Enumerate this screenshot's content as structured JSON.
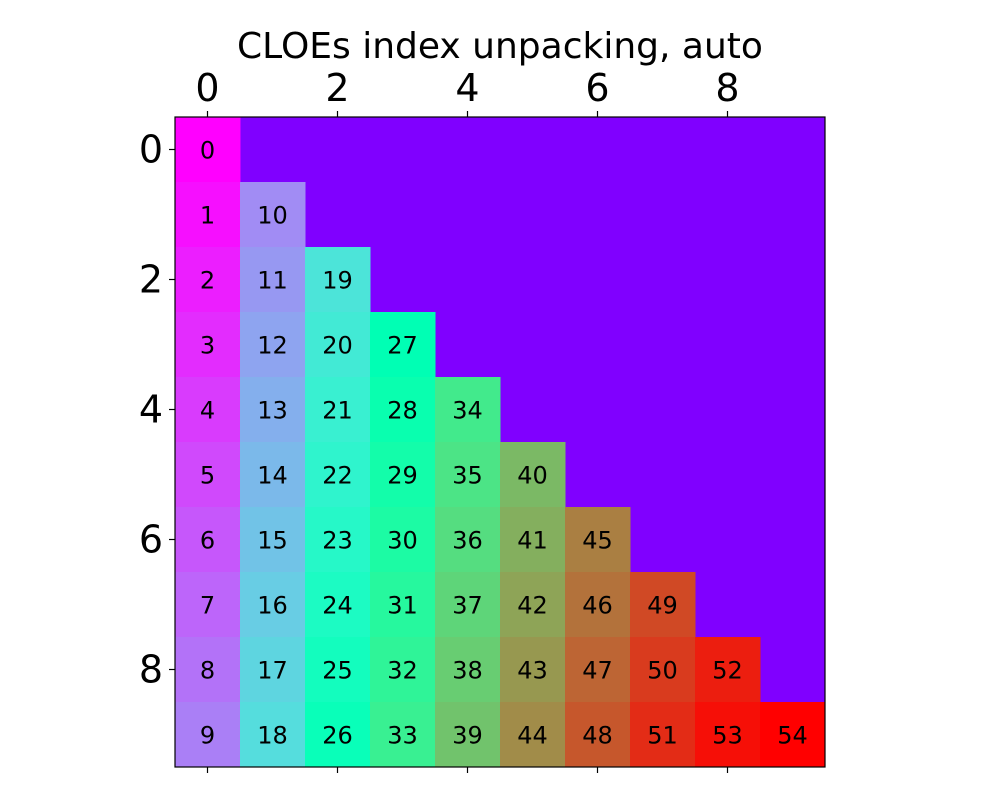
{
  "chart_data": {
    "type": "heatmap",
    "title": "CLOEs index unpacking, auto",
    "xlabel": "",
    "ylabel": "",
    "size": 10,
    "x_ticks": [
      0,
      2,
      4,
      6,
      8
    ],
    "y_ticks": [
      0,
      2,
      4,
      6,
      8
    ],
    "x_tick_position": "top",
    "colormap": "rainbow",
    "vmin": 0,
    "vmax": 54,
    "background_color": "#8000ff",
    "grid": false,
    "legend": "none",
    "values": [
      [
        0,
        null,
        null,
        null,
        null,
        null,
        null,
        null,
        null,
        null
      ],
      [
        1,
        10,
        null,
        null,
        null,
        null,
        null,
        null,
        null,
        null
      ],
      [
        2,
        11,
        19,
        null,
        null,
        null,
        null,
        null,
        null,
        null
      ],
      [
        3,
        12,
        20,
        27,
        null,
        null,
        null,
        null,
        null,
        null
      ],
      [
        4,
        13,
        21,
        28,
        34,
        null,
        null,
        null,
        null,
        null
      ],
      [
        5,
        14,
        22,
        29,
        35,
        40,
        null,
        null,
        null,
        null
      ],
      [
        6,
        15,
        23,
        30,
        36,
        41,
        45,
        null,
        null,
        null
      ],
      [
        7,
        16,
        24,
        31,
        37,
        42,
        46,
        49,
        null,
        null
      ],
      [
        8,
        17,
        25,
        32,
        38,
        43,
        47,
        50,
        52,
        null
      ],
      [
        9,
        18,
        26,
        33,
        39,
        44,
        48,
        51,
        53,
        54
      ]
    ]
  }
}
